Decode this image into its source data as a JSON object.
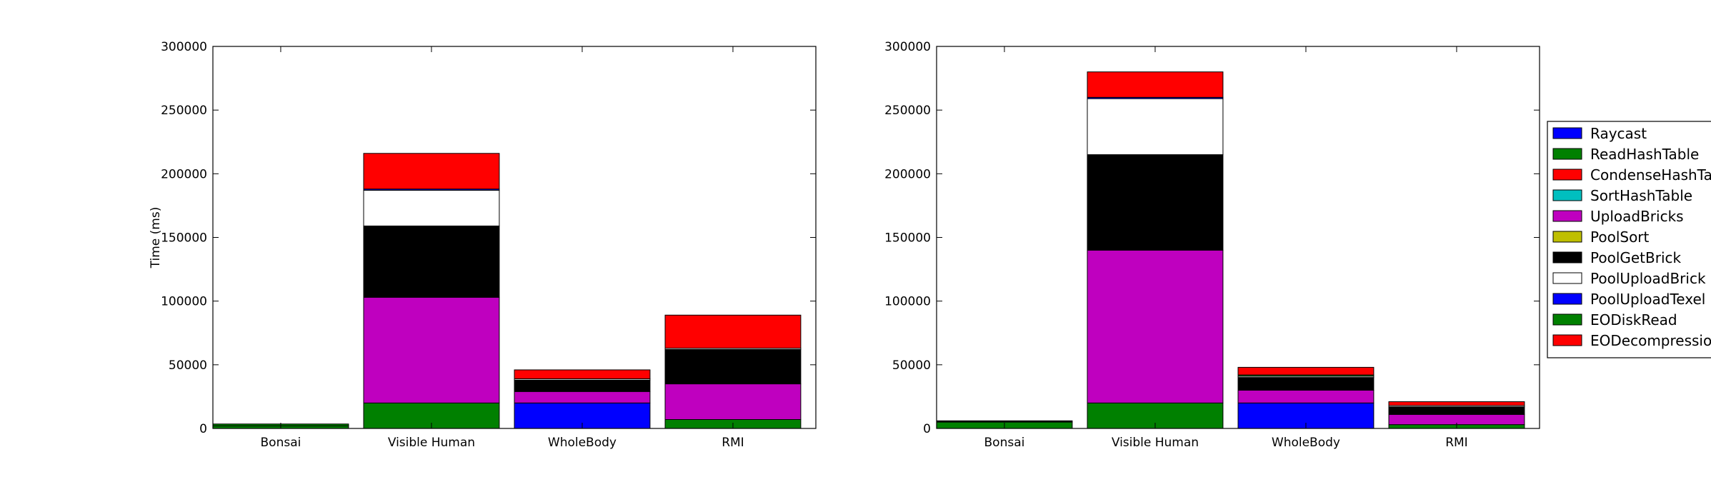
{
  "chart_data": [
    {
      "type": "bar",
      "stacked": true,
      "categories": [
        "Bonsai",
        "Visible Human",
        "WholeBody",
        "RMI"
      ],
      "ylabel": "Time (ms)",
      "xlabel": "",
      "ylim": [
        0,
        300000
      ],
      "yticks": [
        0,
        50000,
        100000,
        150000,
        200000,
        250000,
        300000
      ],
      "grid": false,
      "series": [
        {
          "name": "Raycast",
          "color": "#0000ff",
          "values": [
            0,
            0,
            20000,
            0
          ]
        },
        {
          "name": "ReadHashTable",
          "color": "#008000",
          "values": [
            2000,
            20000,
            0,
            7000
          ]
        },
        {
          "name": "CondenseHashTable",
          "color": "#ff0000",
          "values": [
            0,
            0,
            0,
            0
          ]
        },
        {
          "name": "SortHashTable",
          "color": "#00bfbf",
          "values": [
            0,
            0,
            0,
            0
          ]
        },
        {
          "name": "UploadBricks",
          "color": "#bf00bf",
          "values": [
            0,
            83000,
            9000,
            28000
          ]
        },
        {
          "name": "PoolSort",
          "color": "#bfbf00",
          "values": [
            0,
            0,
            0,
            0
          ]
        },
        {
          "name": "PoolGetBrick",
          "color": "#000000",
          "values": [
            0,
            56000,
            9000,
            27000
          ]
        },
        {
          "name": "PoolUploadBrick",
          "color": "#ffffff",
          "values": [
            0,
            28000,
            1000,
            1000
          ]
        },
        {
          "name": "PoolUploadTexel",
          "color": "#0000ff",
          "values": [
            0,
            1000,
            0,
            0
          ]
        },
        {
          "name": "EODiskRead",
          "color": "#008000",
          "values": [
            1500,
            0,
            0,
            0
          ]
        },
        {
          "name": "EODecompression",
          "color": "#ff0000",
          "values": [
            0,
            28000,
            7000,
            26000
          ]
        }
      ]
    },
    {
      "type": "bar",
      "stacked": true,
      "categories": [
        "Bonsai",
        "Visible Human",
        "WholeBody",
        "RMI"
      ],
      "ylabel": "",
      "xlabel": "",
      "ylim": [
        0,
        300000
      ],
      "yticks": [
        0,
        50000,
        100000,
        150000,
        200000,
        250000,
        300000
      ],
      "grid": false,
      "legend_position": "right",
      "series": [
        {
          "name": "Raycast",
          "color": "#0000ff",
          "values": [
            0,
            0,
            20000,
            0
          ]
        },
        {
          "name": "ReadHashTable",
          "color": "#008000",
          "values": [
            5000,
            20000,
            0,
            3000
          ]
        },
        {
          "name": "CondenseHashTable",
          "color": "#ff0000",
          "values": [
            0,
            0,
            0,
            0
          ]
        },
        {
          "name": "SortHashTable",
          "color": "#00bfbf",
          "values": [
            0,
            0,
            0,
            0
          ]
        },
        {
          "name": "UploadBricks",
          "color": "#bf00bf",
          "values": [
            0,
            120000,
            10000,
            8000
          ]
        },
        {
          "name": "PoolSort",
          "color": "#bfbf00",
          "values": [
            0,
            0,
            0,
            0
          ]
        },
        {
          "name": "PoolGetBrick",
          "color": "#000000",
          "values": [
            1000,
            75000,
            10000,
            6000
          ]
        },
        {
          "name": "PoolUploadBrick",
          "color": "#ffffff",
          "values": [
            0,
            44000,
            1000,
            1000
          ]
        },
        {
          "name": "PoolUploadTexel",
          "color": "#0000ff",
          "values": [
            0,
            1000,
            0,
            0
          ]
        },
        {
          "name": "EODiskRead",
          "color": "#008000",
          "values": [
            0,
            0,
            1000,
            0
          ]
        },
        {
          "name": "EODecompression",
          "color": "#ff0000",
          "values": [
            0,
            20000,
            6000,
            3000
          ]
        }
      ]
    }
  ]
}
